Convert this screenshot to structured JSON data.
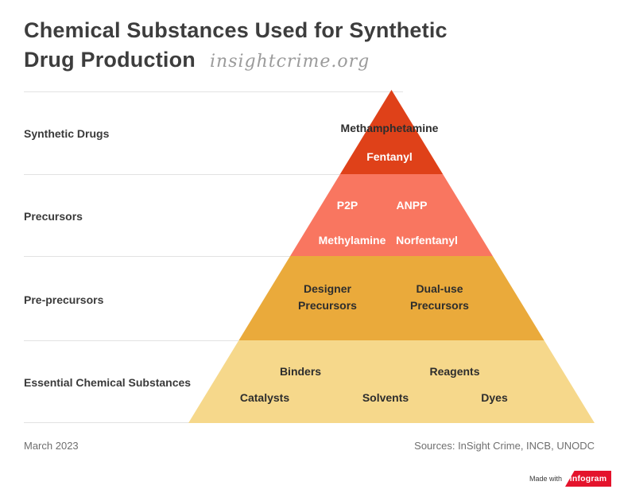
{
  "title": {
    "line1": "Chemical Substances Used for Synthetic",
    "line2": "Drug Production",
    "watermark": "insightcrime.org"
  },
  "chart_data": {
    "type": "pyramid",
    "title": "Chemical Substances Used for Synthetic Drug Production",
    "tiers": [
      {
        "row_label": "Synthetic Drugs",
        "color": "#DF4119",
        "items": [
          "Methamphetamine",
          "Fentanyl"
        ]
      },
      {
        "row_label": "Precursors",
        "color": "#F97660",
        "items": [
          "P2P",
          "ANPP",
          "Methylamine",
          "Norfentanyl"
        ]
      },
      {
        "row_label": "Pre-precursors",
        "color": "#EAAA3B",
        "items": [
          "Designer Precursors",
          "Dual-use Precursors"
        ]
      },
      {
        "row_label": "Essential Chemical Substances",
        "color": "#F6D88B",
        "items": [
          "Binders",
          "Reagents",
          "Catalysts",
          "Solvents",
          "Dyes"
        ]
      }
    ]
  },
  "footer": {
    "date": "March 2023",
    "sources": "Sources: InSight Crime, INCB, UNODC"
  },
  "badge": {
    "made_with_label": "Made with",
    "brand": "infogram",
    "brand_color": "#E4132C"
  }
}
